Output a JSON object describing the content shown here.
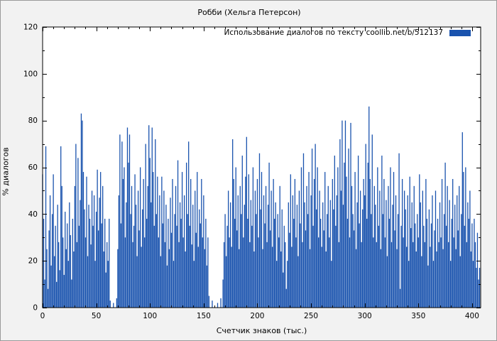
{
  "figure": {
    "bg_color": "#f2f2f2",
    "plot_bg": "#ffffff",
    "bar_color": "#1a53ae",
    "axis_color": "#000000"
  },
  "chart_data": {
    "type": "bar",
    "title": "Робби (Хельга Петерсон)",
    "legend": "Использование диалогов по тексту  coollib.net/b/512137",
    "xlabel": "Счетчик знаков (тыс.)",
    "ylabel": "% диалогов",
    "xlim": [
      0,
      408
    ],
    "ylim": [
      0,
      120
    ],
    "xticks": [
      0,
      50,
      100,
      150,
      200,
      250,
      300,
      350,
      400
    ],
    "yticks": [
      0,
      20,
      40,
      60,
      80,
      100,
      120
    ],
    "x_minor_step": 10,
    "y_minor_step": 10,
    "legend_position": "top-right",
    "grid": false,
    "x_start": 0,
    "x_step": 1,
    "values": [
      57,
      38,
      12,
      69,
      25,
      8,
      33,
      48,
      18,
      40,
      57,
      22,
      35,
      11,
      44,
      28,
      16,
      69,
      52,
      30,
      14,
      41,
      25,
      36,
      20,
      45,
      31,
      12,
      38,
      24,
      52,
      70,
      28,
      64,
      35,
      46,
      83,
      80,
      58,
      42,
      30,
      56,
      22,
      44,
      38,
      27,
      50,
      35,
      48,
      20,
      41,
      59,
      33,
      47,
      58,
      36,
      52,
      24,
      38,
      15,
      28,
      20,
      38,
      3,
      0,
      0,
      2,
      0,
      0,
      4,
      25,
      48,
      74,
      36,
      71,
      55,
      60,
      30,
      45,
      77,
      62,
      74,
      40,
      52,
      28,
      35,
      57,
      44,
      22,
      50,
      33,
      60,
      26,
      42,
      55,
      30,
      70,
      38,
      52,
      78,
      64,
      45,
      77,
      58,
      35,
      72,
      40,
      56,
      30,
      48,
      22,
      56,
      36,
      50,
      28,
      44,
      18,
      38,
      25,
      47,
      32,
      55,
      20,
      40,
      52,
      35,
      63,
      28,
      45,
      38,
      58,
      30,
      48,
      24,
      62,
      40,
      71,
      35,
      55,
      27,
      44,
      20,
      50,
      32,
      58,
      26,
      42,
      36,
      55,
      30,
      48,
      25,
      38,
      18,
      30,
      5,
      0,
      0,
      3,
      0,
      0,
      0,
      0,
      2,
      0,
      0,
      4,
      0,
      12,
      28,
      40,
      22,
      35,
      50,
      30,
      45,
      26,
      72,
      55,
      38,
      60,
      33,
      48,
      25,
      52,
      40,
      65,
      30,
      44,
      56,
      73,
      38,
      57,
      28,
      46,
      35,
      60,
      24,
      50,
      40,
      55,
      30,
      66,
      42,
      58,
      25,
      48,
      36,
      52,
      28,
      44,
      62,
      33,
      50,
      26,
      55,
      38,
      45,
      20,
      40,
      30,
      52,
      24,
      42,
      15,
      35,
      28,
      8,
      20,
      45,
      32,
      57,
      26,
      48,
      38,
      55,
      30,
      44,
      22,
      50,
      36,
      60,
      28,
      66,
      45,
      33,
      52,
      40,
      58,
      25,
      48,
      68,
      35,
      55,
      70,
      42,
      60,
      30,
      50,
      38,
      26,
      45,
      33,
      58,
      24,
      40,
      52,
      30,
      46,
      20,
      55,
      42,
      65,
      35,
      48,
      60,
      28,
      72,
      50,
      80,
      44,
      62,
      80,
      56,
      38,
      68,
      30,
      79,
      52,
      40,
      33,
      58,
      25,
      45,
      65,
      36,
      50,
      28,
      42,
      55,
      48,
      70,
      38,
      62,
      86,
      55,
      40,
      74,
      30,
      52,
      44,
      28,
      60,
      35,
      50,
      25,
      65,
      40,
      55,
      30,
      46,
      22,
      52,
      38,
      60,
      28,
      44,
      58,
      33,
      48,
      25,
      40,
      66,
      8,
      35,
      55,
      30,
      50,
      42,
      26,
      48,
      20,
      56,
      34,
      45,
      28,
      52,
      36,
      24,
      40,
      30,
      57,
      45,
      22,
      50,
      35,
      28,
      55,
      38,
      18,
      42,
      26,
      36,
      48,
      20,
      33,
      50,
      24,
      38,
      28,
      45,
      30,
      55,
      25,
      40,
      62,
      35,
      52,
      28,
      46,
      20,
      38,
      55,
      30,
      44,
      25,
      48,
      33,
      52,
      22,
      40,
      75,
      58,
      35,
      60,
      28,
      45,
      38,
      50,
      24,
      36,
      20,
      38,
      28,
      17,
      32,
      12,
      17
    ]
  }
}
